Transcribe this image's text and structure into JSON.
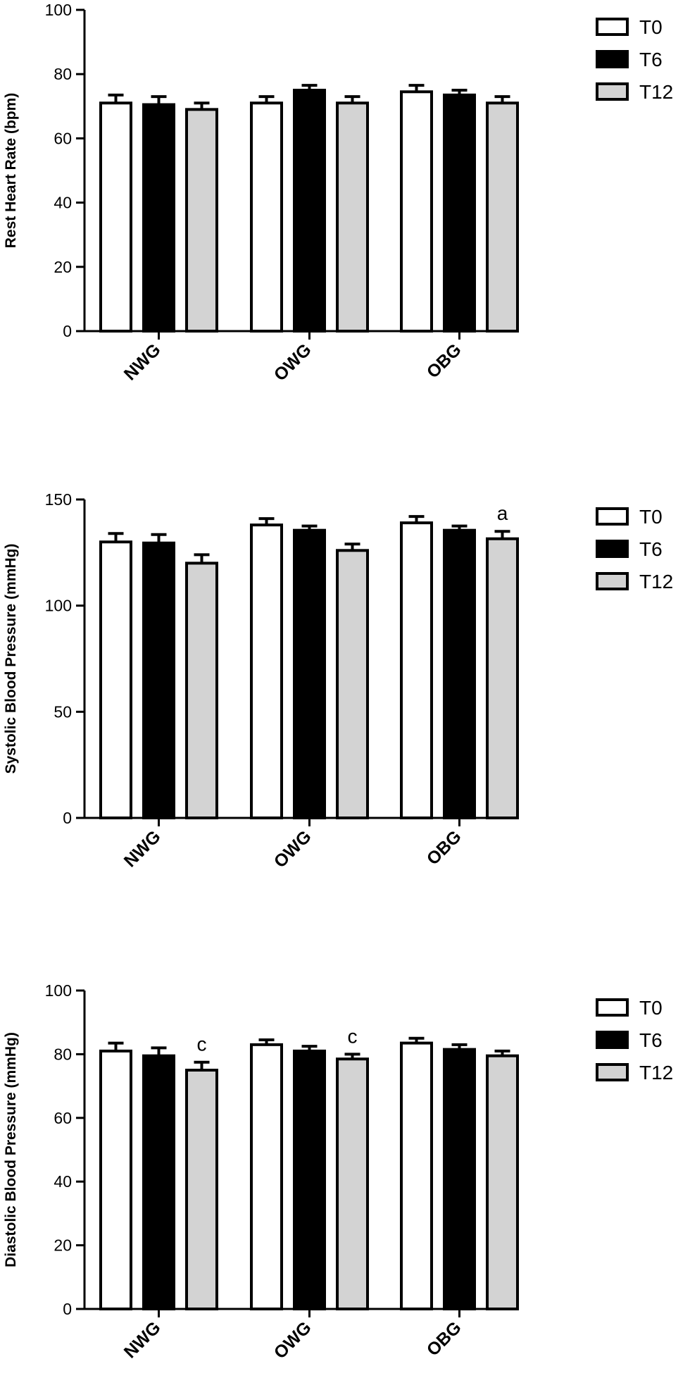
{
  "chart_data": [
    {
      "type": "bar",
      "ylabel": "Rest Heart Rate (bpm)",
      "categories": [
        "NWG",
        "OWG",
        "OBG"
      ],
      "series": [
        {
          "name": "T0",
          "values": [
            71,
            71,
            74.5
          ],
          "errors": [
            2.5,
            2,
            2
          ]
        },
        {
          "name": "T6",
          "values": [
            70.5,
            75,
            73.5
          ],
          "errors": [
            2.5,
            1.5,
            1.5
          ]
        },
        {
          "name": "T12",
          "values": [
            69,
            71,
            71
          ],
          "errors": [
            2,
            2,
            2
          ]
        }
      ],
      "ylim": [
        0,
        100
      ],
      "yticks": [
        0,
        20,
        40,
        60,
        80,
        100
      ],
      "legend_position": "top-right",
      "annotations": []
    },
    {
      "type": "bar",
      "ylabel": "Systolic Blood Pressure (mmHg)",
      "categories": [
        "NWG",
        "OWG",
        "OBG"
      ],
      "series": [
        {
          "name": "T0",
          "values": [
            130,
            138,
            139
          ],
          "errors": [
            4,
            3,
            3
          ]
        },
        {
          "name": "T6",
          "values": [
            129.5,
            135.5,
            135.5
          ],
          "errors": [
            4,
            2,
            2
          ]
        },
        {
          "name": "T12",
          "values": [
            120,
            126,
            131.5
          ],
          "errors": [
            4,
            3,
            3.5
          ]
        }
      ],
      "ylim": [
        0,
        150
      ],
      "yticks": [
        0,
        50,
        100,
        150
      ],
      "legend_position": "top-right",
      "annotations": [
        {
          "text": "a",
          "category": "OBG",
          "series": "T12"
        }
      ]
    },
    {
      "type": "bar",
      "ylabel": "Diastolic Blood Pressure (mmHg)",
      "categories": [
        "NWG",
        "OWG",
        "OBG"
      ],
      "series": [
        {
          "name": "T0",
          "values": [
            81,
            83,
            83.5
          ],
          "errors": [
            2.5,
            1.5,
            1.5
          ]
        },
        {
          "name": "T6",
          "values": [
            79.5,
            81,
            81.5
          ],
          "errors": [
            2.5,
            1.5,
            1.5
          ]
        },
        {
          "name": "T12",
          "values": [
            75,
            78.5,
            79.5
          ],
          "errors": [
            2.5,
            1.5,
            1.5
          ]
        }
      ],
      "ylim": [
        0,
        100
      ],
      "yticks": [
        0,
        20,
        40,
        60,
        80,
        100
      ],
      "legend_position": "top-right",
      "annotations": [
        {
          "text": "c",
          "category": "NWG",
          "series": "T12"
        },
        {
          "text": "c",
          "category": "OWG",
          "series": "T12"
        }
      ]
    }
  ],
  "colors": {
    "T0": "#ffffff",
    "T6": "#000000",
    "T12": "#d3d3d3",
    "stroke": "#000000"
  }
}
